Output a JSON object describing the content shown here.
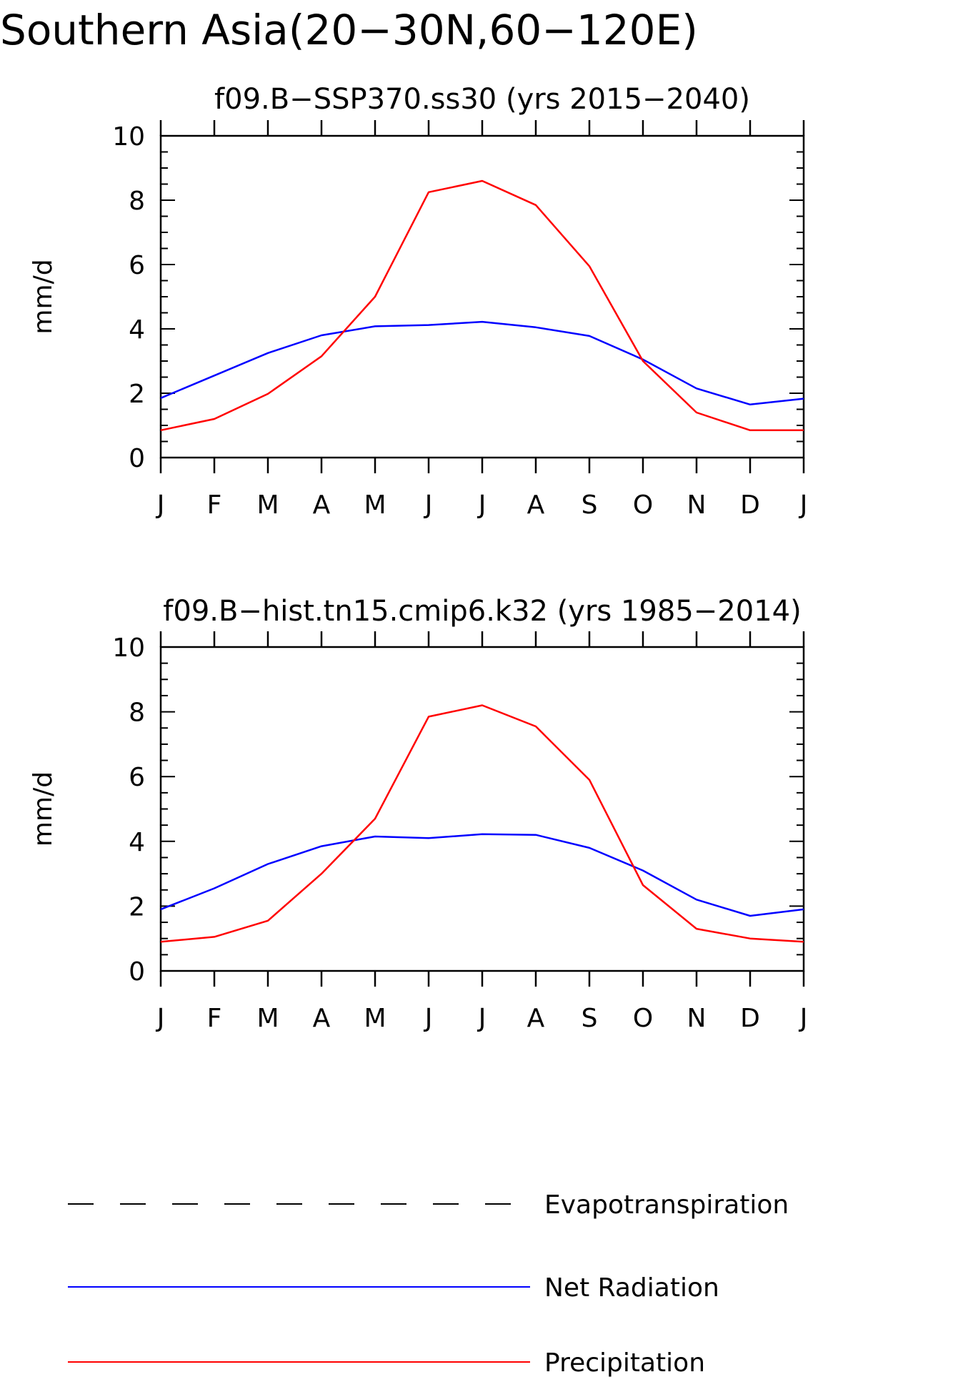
{
  "figure": {
    "title": "Southern Asia(20−30N,60−120E)"
  },
  "chart_data": [
    {
      "type": "line",
      "title": "f09.B−SSP370.ss30 (yrs 2015−2040)",
      "xlabel": "",
      "ylabel": "mm/d",
      "categories": [
        "J",
        "F",
        "M",
        "A",
        "M",
        "J",
        "J",
        "A",
        "S",
        "O",
        "N",
        "D",
        "J"
      ],
      "ylim": [
        0,
        10
      ],
      "yticks": [
        "0",
        "2",
        "4",
        "6",
        "8",
        "10"
      ],
      "grid": false,
      "series": [
        {
          "name": "Net Radiation",
          "color": "#0000ff",
          "values": [
            1.85,
            2.55,
            3.25,
            3.8,
            4.08,
            4.12,
            4.22,
            4.05,
            3.78,
            3.05,
            2.15,
            1.65,
            1.83
          ]
        },
        {
          "name": "Precipitation",
          "color": "#ff0000",
          "values": [
            0.85,
            1.2,
            1.98,
            3.15,
            5.0,
            8.25,
            8.6,
            7.85,
            5.95,
            3.0,
            1.4,
            0.85,
            0.85
          ]
        }
      ]
    },
    {
      "type": "line",
      "title": "f09.B−hist.tn15.cmip6.k32 (yrs 1985−2014)",
      "xlabel": "",
      "ylabel": "mm/d",
      "categories": [
        "J",
        "F",
        "M",
        "A",
        "M",
        "J",
        "J",
        "A",
        "S",
        "O",
        "N",
        "D",
        "J"
      ],
      "ylim": [
        0,
        10
      ],
      "yticks": [
        "0",
        "2",
        "4",
        "6",
        "8",
        "10"
      ],
      "grid": false,
      "series": [
        {
          "name": "Net Radiation",
          "color": "#0000ff",
          "values": [
            1.9,
            2.55,
            3.3,
            3.85,
            4.15,
            4.1,
            4.22,
            4.2,
            3.8,
            3.1,
            2.2,
            1.7,
            1.9
          ]
        },
        {
          "name": "Precipitation",
          "color": "#ff0000",
          "values": [
            0.9,
            1.05,
            1.55,
            3.0,
            4.7,
            7.85,
            8.2,
            7.55,
            5.9,
            2.65,
            1.3,
            1.0,
            0.9
          ]
        }
      ]
    }
  ],
  "legend": {
    "placement": "bottom",
    "items": [
      {
        "label": "Evapotranspiration",
        "color": "#000000",
        "style": "dashed"
      },
      {
        "label": "Net Radiation",
        "color": "#0000ff",
        "style": "solid"
      },
      {
        "label": "Precipitation",
        "color": "#ff0000",
        "style": "solid"
      }
    ]
  }
}
